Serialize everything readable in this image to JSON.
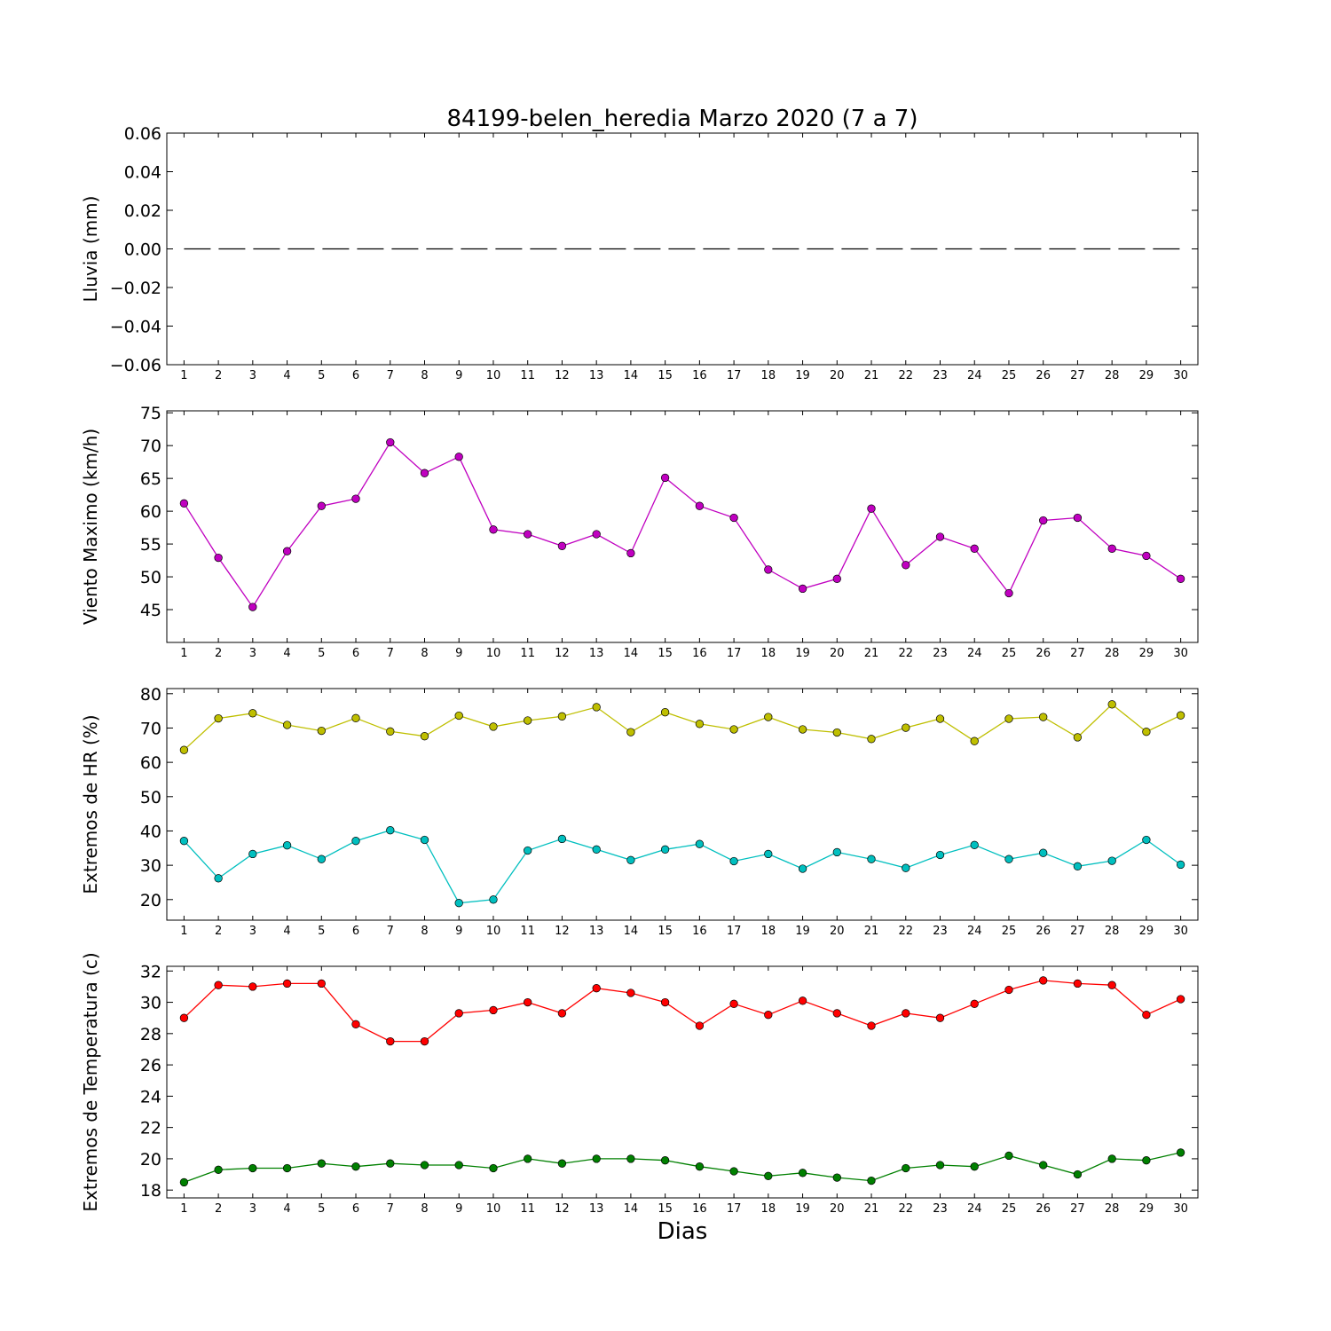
{
  "title": "84199-belen_heredia Marzo 2020  (7 a 7)",
  "xlabel": "Dias",
  "chart_data": [
    {
      "type": "line",
      "ylabel": "Lluvia (mm)",
      "x": [
        1,
        2,
        3,
        4,
        5,
        6,
        7,
        8,
        9,
        10,
        11,
        12,
        13,
        14,
        15,
        16,
        17,
        18,
        19,
        20,
        21,
        22,
        23,
        24,
        25,
        26,
        27,
        28,
        29,
        30
      ],
      "xlim": [
        0.5,
        30.5
      ],
      "ylim": [
        -0.06,
        0.06
      ],
      "yticks": [
        -0.06,
        -0.04,
        -0.02,
        0.0,
        0.02,
        0.04,
        0.06
      ],
      "ytick_labels": [
        "−0.06",
        "−0.04",
        "−0.02",
        "0.00",
        "0.02",
        "0.04",
        "0.06"
      ],
      "series": [
        {
          "color": "#000000",
          "style": "dashed",
          "markers": false,
          "values": [
            0,
            0,
            0,
            0,
            0,
            0,
            0,
            0,
            0,
            0,
            0,
            0,
            0,
            0,
            0,
            0,
            0,
            0,
            0,
            0,
            0,
            0,
            0,
            0,
            0,
            0,
            0,
            0,
            0,
            0
          ]
        }
      ],
      "grid": false
    },
    {
      "type": "line",
      "ylabel": "Viento Maximo (km/h)",
      "x": [
        1,
        2,
        3,
        4,
        5,
        6,
        7,
        8,
        9,
        10,
        11,
        12,
        13,
        14,
        15,
        16,
        17,
        18,
        19,
        20,
        21,
        22,
        23,
        24,
        25,
        26,
        27,
        28,
        29,
        30
      ],
      "xlim": [
        0.5,
        30.5
      ],
      "ylim": [
        40,
        75.3
      ],
      "yticks": [
        45,
        50,
        55,
        60,
        65,
        70,
        75
      ],
      "ytick_labels": [
        "45",
        "50",
        "55",
        "60",
        "65",
        "70",
        "75"
      ],
      "series": [
        {
          "color": "#c000c0",
          "markers": true,
          "values": [
            61.2,
            52.9,
            45.4,
            53.9,
            60.8,
            61.9,
            70.5,
            65.8,
            68.3,
            57.2,
            56.5,
            54.7,
            56.5,
            53.6,
            65.1,
            60.8,
            59.0,
            51.1,
            48.2,
            49.7,
            60.4,
            51.8,
            56.1,
            54.3,
            47.5,
            58.6,
            59.0,
            54.3,
            53.2,
            49.7
          ]
        }
      ],
      "grid": false
    },
    {
      "type": "line",
      "ylabel": "Extremos de HR (%)",
      "x": [
        1,
        2,
        3,
        4,
        5,
        6,
        7,
        8,
        9,
        10,
        11,
        12,
        13,
        14,
        15,
        16,
        17,
        18,
        19,
        20,
        21,
        22,
        23,
        24,
        25,
        26,
        27,
        28,
        29,
        30
      ],
      "xlim": [
        0.5,
        30.5
      ],
      "ylim": [
        14,
        81.5
      ],
      "yticks": [
        20,
        30,
        40,
        50,
        60,
        70,
        80
      ],
      "ytick_labels": [
        "20",
        "30",
        "40",
        "50",
        "60",
        "70",
        "80"
      ],
      "series": [
        {
          "color": "#bfbf00",
          "markers": true,
          "values": [
            63.6,
            72.8,
            74.3,
            70.9,
            69.2,
            72.9,
            69.0,
            67.6,
            73.6,
            70.4,
            72.2,
            73.4,
            76.1,
            68.8,
            74.6,
            71.2,
            69.6,
            73.2,
            69.6,
            68.7,
            66.8,
            70.1,
            72.7,
            66.2,
            72.7,
            73.2,
            67.3,
            76.9,
            68.9,
            73.7
          ]
        },
        {
          "color": "#00bfbf",
          "markers": true,
          "values": [
            37.1,
            26.2,
            33.3,
            35.8,
            31.8,
            37.1,
            40.2,
            37.4,
            19.0,
            20.0,
            34.3,
            37.7,
            34.6,
            31.5,
            34.6,
            36.2,
            31.2,
            33.3,
            29.0,
            33.8,
            31.8,
            29.2,
            33.0,
            35.9,
            31.8,
            33.6,
            29.7,
            31.3,
            37.4,
            30.2
          ]
        }
      ],
      "grid": false
    },
    {
      "type": "line",
      "ylabel": "Extremos de Temperatura (c)",
      "x": [
        1,
        2,
        3,
        4,
        5,
        6,
        7,
        8,
        9,
        10,
        11,
        12,
        13,
        14,
        15,
        16,
        17,
        18,
        19,
        20,
        21,
        22,
        23,
        24,
        25,
        26,
        27,
        28,
        29,
        30
      ],
      "xlim": [
        0.5,
        30.5
      ],
      "ylim": [
        17.5,
        32.3
      ],
      "yticks": [
        18,
        20,
        22,
        24,
        26,
        28,
        30,
        32
      ],
      "ytick_labels": [
        "18",
        "20",
        "22",
        "24",
        "26",
        "28",
        "30",
        "32"
      ],
      "series": [
        {
          "color": "#ff0000",
          "markers": true,
          "values": [
            29.0,
            31.1,
            31.0,
            31.2,
            31.2,
            28.6,
            27.5,
            27.5,
            29.3,
            29.5,
            30.0,
            29.3,
            30.9,
            30.6,
            30.0,
            28.5,
            29.9,
            29.2,
            30.1,
            29.3,
            28.5,
            29.3,
            29.0,
            29.9,
            30.8,
            31.4,
            31.2,
            31.1,
            29.2,
            30.2
          ]
        },
        {
          "color": "#008000",
          "markers": true,
          "values": [
            18.5,
            19.3,
            19.4,
            19.4,
            19.7,
            19.5,
            19.7,
            19.6,
            19.6,
            19.4,
            20.0,
            19.7,
            20.0,
            20.0,
            19.9,
            19.5,
            19.2,
            18.9,
            19.1,
            18.8,
            18.6,
            19.4,
            19.6,
            19.5,
            20.2,
            19.6,
            19.0,
            20.0,
            19.9,
            20.4
          ]
        }
      ],
      "grid": false
    }
  ]
}
